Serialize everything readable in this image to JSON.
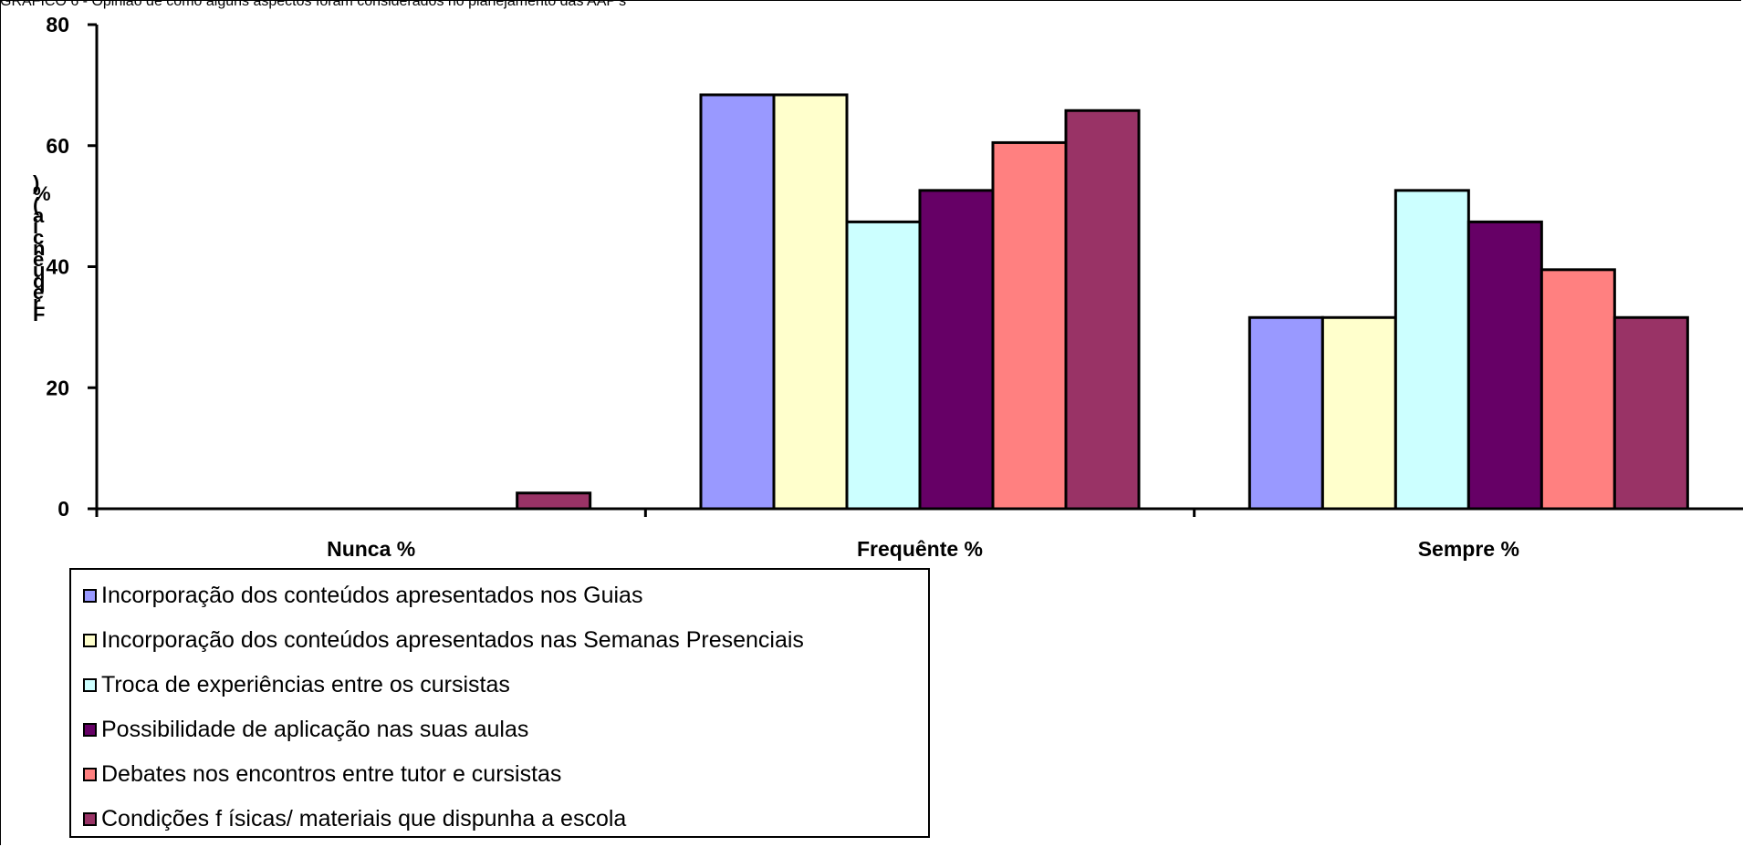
{
  "chart_data": {
    "type": "bar",
    "title": "GRÁFICO 6 - Opinião de como alguns aspectos foram considerados no planejamento das AAP's",
    "ylabel": "Frequência (%)",
    "xlabel": "",
    "categories": [
      "Nunca %",
      "Frequênte %",
      "Sempre %"
    ],
    "ylim": [
      0,
      80
    ],
    "yticks": [
      "0",
      "20",
      "40",
      "60",
      "80"
    ],
    "grid": false,
    "legend_position": "bottom-left",
    "series": [
      {
        "name": "Incorporação dos conteúdos apresentados nos Guias",
        "color": "#9999ff",
        "values": [
          0,
          68.4,
          31.6
        ]
      },
      {
        "name": "Incorporação dos conteúdos apresentados nas Semanas  Presenciais",
        "color": "#ffffcc",
        "values": [
          0,
          68.4,
          31.6
        ]
      },
      {
        "name": "Troca de experiências  entre os cursistas",
        "color": "#ccffff",
        "values": [
          0,
          47.4,
          52.6
        ]
      },
      {
        "name": "Possibilidade de aplicação nas suas aulas",
        "color": "#660066",
        "values": [
          0,
          52.6,
          47.4
        ]
      },
      {
        "name": "Debates nos encontros entre tutor e cursistas",
        "color": "#ff8080",
        "values": [
          0,
          60.5,
          39.5
        ]
      },
      {
        "name": "Condições f ísicas/ materiais que dispunha a escola",
        "color": "#993366",
        "values": [
          2.6,
          65.8,
          31.6
        ]
      }
    ]
  }
}
